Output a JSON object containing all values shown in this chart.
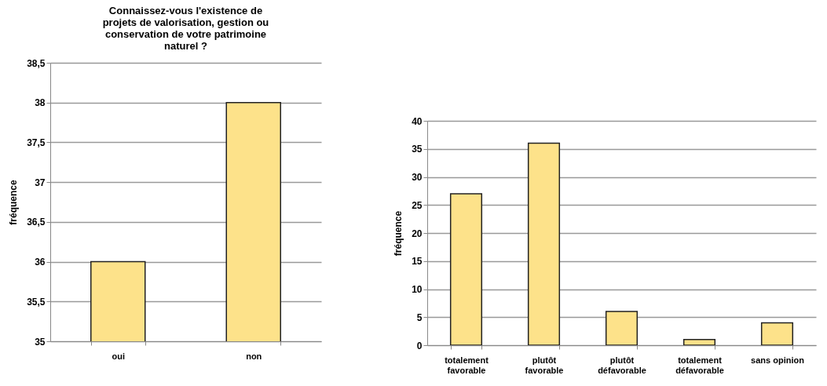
{
  "chart_data": [
    {
      "type": "bar",
      "title": "Connaissez-vous l'existence de projets de valorisation, gestion ou conservation de votre patrimoine naturel ?",
      "ylabel": "fréquence",
      "categories": [
        "oui",
        "non"
      ],
      "values": [
        36,
        38
      ],
      "color": "#fde28a",
      "ylim": [
        35,
        38.5
      ],
      "yticks": [
        {
          "value": 35,
          "label": "35"
        },
        {
          "value": 35.5,
          "label": "35,5"
        },
        {
          "value": 36,
          "label": "36"
        },
        {
          "value": 36.5,
          "label": "36,5"
        },
        {
          "value": 37,
          "label": "37"
        },
        {
          "value": 37.5,
          "label": "37,5"
        },
        {
          "value": 38,
          "label": "38"
        },
        {
          "value": 38.5,
          "label": "38,5"
        }
      ],
      "grid": "y"
    },
    {
      "type": "bar",
      "ylabel": "fréquence",
      "categories": [
        "totalement favorable",
        "plutôt favorable",
        "plutôt défavorable",
        "totalement défavorable",
        "sans opinion"
      ],
      "values": [
        27,
        36,
        6,
        1,
        4
      ],
      "color": "#fde28a",
      "ylim": [
        0,
        40
      ],
      "yticks": [
        0,
        5,
        10,
        15,
        20,
        25,
        30,
        35,
        40
      ],
      "grid": "y"
    }
  ]
}
